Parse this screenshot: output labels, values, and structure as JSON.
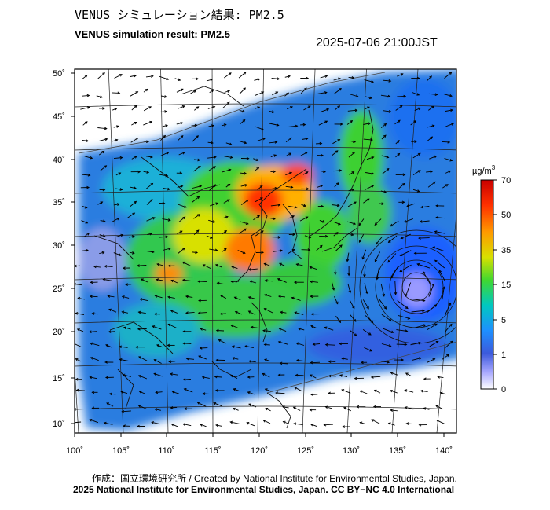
{
  "header": {
    "title_jp": "VENUS シミュレーション結果: PM2.5",
    "title_en": "VENUS simulation result: PM2.5",
    "timestamp": "2025-07-06 21:00JST"
  },
  "map": {
    "lat_ticks": [
      "50˚",
      "45˚",
      "40˚",
      "35˚",
      "30˚",
      "25˚",
      "20˚",
      "15˚",
      "10˚"
    ],
    "lon_ticks": [
      "100˚",
      "105˚",
      "110˚",
      "115˚",
      "120˚",
      "125˚",
      "130˚",
      "135˚",
      "140˚"
    ]
  },
  "colorbar": {
    "unit_prefix": "µg/m",
    "unit_exp": "3",
    "tick_labels": [
      "70",
      "50",
      "35",
      "15",
      "5",
      "1",
      "0"
    ],
    "colors": [
      "#c80000",
      "#ff3000",
      "#ff9a00",
      "#d8e000",
      "#40d830",
      "#00c8c0",
      "#1e90ff",
      "#3c5adc",
      "#a8a8ff",
      "#ffffff"
    ]
  },
  "footer": {
    "credit": "作成：国立環境研究所 / Created by National Institute for Environmental Studies, Japan.",
    "license": "2025 National Institute for Environmental Studies, Japan. CC BY−NC 4.0 International"
  }
}
